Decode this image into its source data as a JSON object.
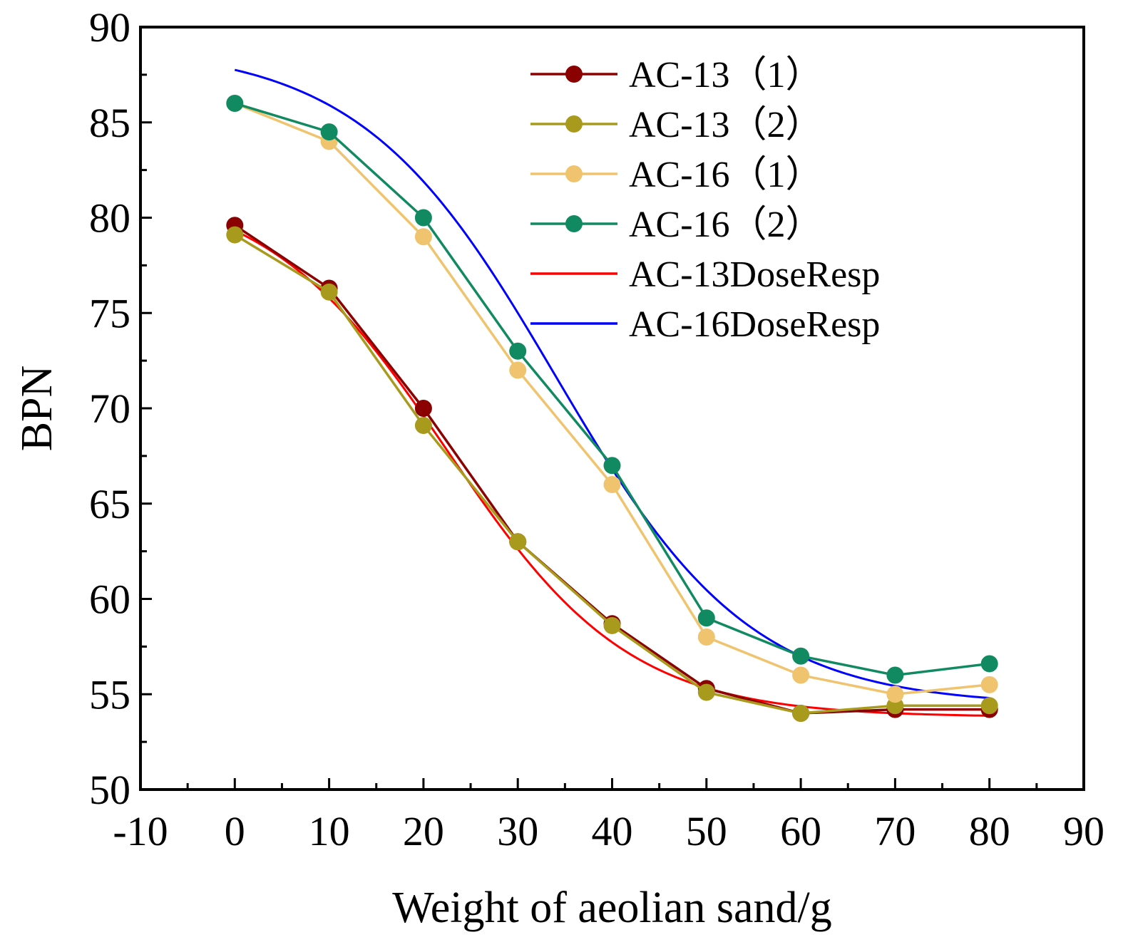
{
  "chart_data": {
    "type": "line",
    "title": "",
    "xlabel": "Weight of aeolian sand/g",
    "ylabel": "BPN",
    "xlim": [
      -10,
      90
    ],
    "ylim": [
      50,
      90
    ],
    "xticks": [
      "-10",
      "0",
      "10",
      "20",
      "30",
      "40",
      "50",
      "60",
      "70",
      "80",
      "90"
    ],
    "yticks": [
      "50",
      "55",
      "60",
      "65",
      "70",
      "75",
      "80",
      "85",
      "90"
    ],
    "grid": false,
    "legend_position": "top-right",
    "x": [
      0,
      10,
      20,
      30,
      40,
      50,
      60,
      70,
      80
    ],
    "series": [
      {
        "name": "AC-13（1）",
        "color": "#8B0000",
        "markers": true,
        "values": [
          79.6,
          76.3,
          70.0,
          63.0,
          58.7,
          55.3,
          54.0,
          54.2,
          54.2
        ]
      },
      {
        "name": "AC-13（2）",
        "color": "#A89A1C",
        "markers": true,
        "values": [
          79.1,
          76.1,
          69.1,
          63.0,
          58.6,
          55.1,
          54.0,
          54.4,
          54.4
        ]
      },
      {
        "name": "AC-16（1）",
        "color": "#F0C46E",
        "markers": true,
        "values": [
          86.0,
          84.0,
          79.0,
          72.0,
          66.0,
          58.0,
          56.0,
          55.0,
          55.5
        ]
      },
      {
        "name": "AC-16（2）",
        "color": "#118A62",
        "markers": true,
        "values": [
          86.0,
          84.5,
          80.0,
          73.0,
          67.0,
          59.0,
          57.0,
          56.0,
          56.6
        ]
      }
    ],
    "fits": [
      {
        "name": "AC-13DoseResp",
        "color": "#FF0000",
        "A1": 81.8,
        "A2": 53.8,
        "LOGx0": 22.5,
        "p": -0.045
      },
      {
        "name": "AC-16DoseResp",
        "color": "#0000FF",
        "A1": 89.0,
        "A2": 54.4,
        "LOGx0": 34.0,
        "p": -0.042
      }
    ]
  }
}
